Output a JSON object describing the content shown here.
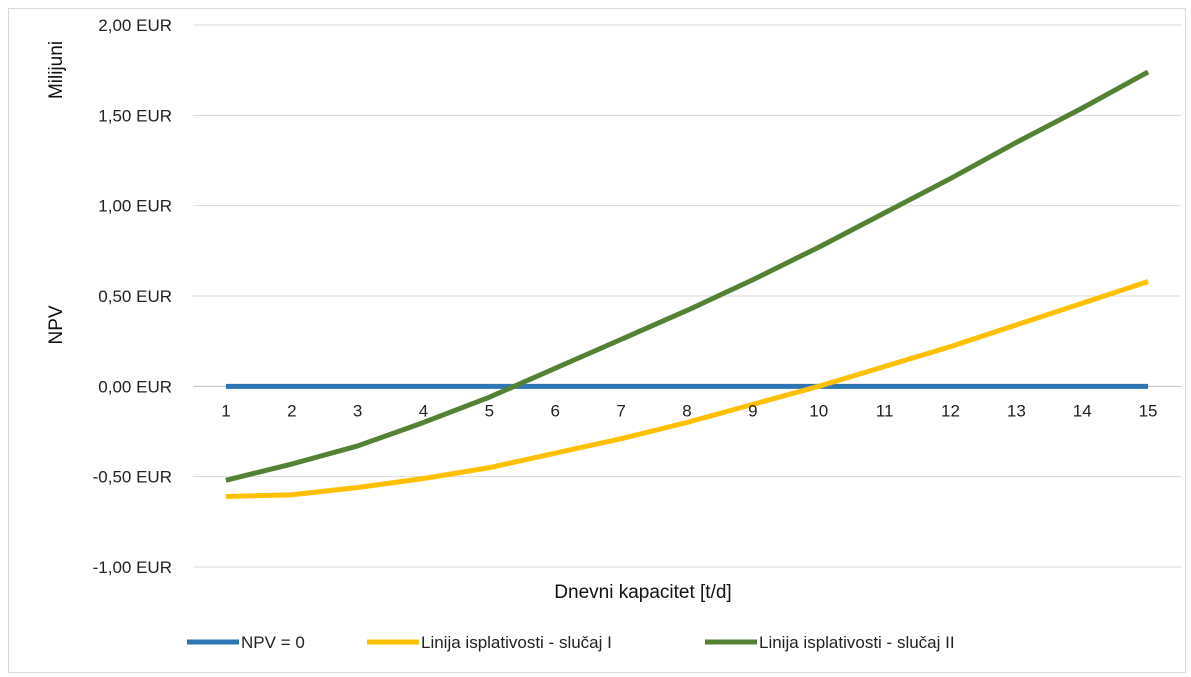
{
  "chart_data": {
    "type": "line",
    "xlabel": "Dnevni kapacitet [t/d]",
    "ylabel": "NPV",
    "y_unit_label": "Milijuni",
    "categories": [
      "1",
      "2",
      "3",
      "4",
      "5",
      "6",
      "7",
      "8",
      "9",
      "10",
      "11",
      "12",
      "13",
      "14",
      "15"
    ],
    "ylim": [
      -1.0,
      2.0
    ],
    "yticks": [
      2.0,
      1.5,
      1.0,
      0.5,
      0.0,
      -0.5,
      -1.0
    ],
    "ytick_labels": [
      "2,00 EUR",
      "1,50 EUR",
      "1,00 EUR",
      "0,50 EUR",
      "0,00 EUR",
      "-0,50 EUR",
      "-1,00 EUR"
    ],
    "negative_tick_color": "#ff0000",
    "grid": true,
    "legend_position": "bottom",
    "series": [
      {
        "name": "NPV = 0",
        "color": "#2e75b6",
        "values": [
          0,
          0,
          0,
          0,
          0,
          0,
          0,
          0,
          0,
          0,
          0,
          0,
          0,
          0,
          0
        ]
      },
      {
        "name": "Linija isplativosti - slučaj I",
        "color": "#ffc000",
        "values": [
          -0.61,
          -0.6,
          -0.56,
          -0.51,
          -0.45,
          -0.37,
          -0.29,
          -0.2,
          -0.1,
          0.0,
          0.11,
          0.22,
          0.34,
          0.46,
          0.58
        ]
      },
      {
        "name": "Linija isplativosti - slučaj II",
        "color": "#548235",
        "values": [
          -0.52,
          -0.43,
          -0.33,
          -0.2,
          -0.06,
          0.1,
          0.26,
          0.42,
          0.59,
          0.77,
          0.96,
          1.15,
          1.35,
          1.54,
          1.74
        ]
      }
    ]
  }
}
